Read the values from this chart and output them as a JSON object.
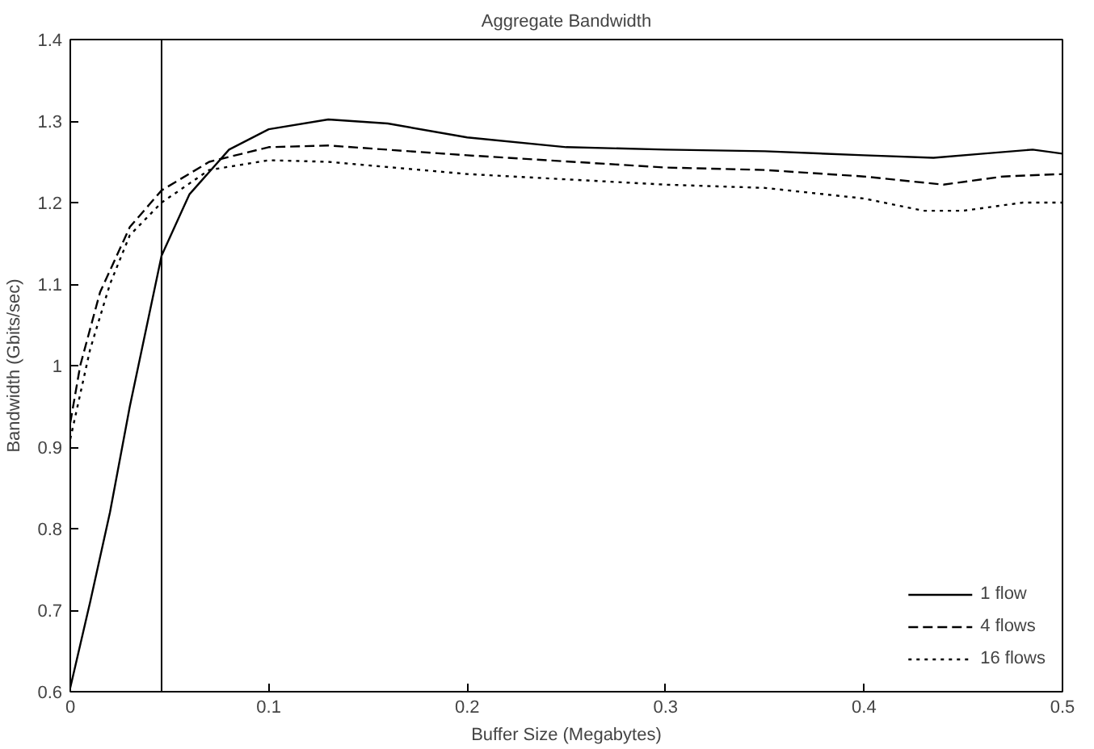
{
  "chart_data": {
    "type": "line",
    "title": "Aggregate Bandwidth",
    "xlabel": "Buffer Size (Megabytes)",
    "ylabel": "Bandwidth (Gbits/sec)",
    "xlim": [
      0,
      0.5
    ],
    "ylim": [
      0.6,
      1.4
    ],
    "xticks": [
      0,
      0.1,
      0.2,
      0.3,
      0.4,
      0.5
    ],
    "yticks": [
      0.6,
      0.7,
      0.8,
      0.9,
      1,
      1.1,
      1.2,
      1.3,
      1.4
    ],
    "grid": false,
    "legend": "bottom right",
    "ref_lines": [
      {
        "axis": "x",
        "value": 0.046,
        "color": "#000000"
      }
    ],
    "series": [
      {
        "name": "1 flow",
        "color": "#000000",
        "line_style": "solid",
        "x": [
          0,
          0.01,
          0.02,
          0.03,
          0.046,
          0.06,
          0.08,
          0.1,
          0.13,
          0.16,
          0.2,
          0.25,
          0.3,
          0.35,
          0.4,
          0.435,
          0.46,
          0.485,
          0.5
        ],
        "values": [
          0.605,
          0.71,
          0.82,
          0.95,
          1.135,
          1.21,
          1.265,
          1.29,
          1.302,
          1.297,
          1.28,
          1.268,
          1.265,
          1.263,
          1.258,
          1.255,
          1.26,
          1.265,
          1.26
        ]
      },
      {
        "name": "4 flows",
        "color": "#000000",
        "line_style": "dashed",
        "x": [
          0,
          0.005,
          0.015,
          0.03,
          0.046,
          0.07,
          0.1,
          0.13,
          0.2,
          0.3,
          0.35,
          0.4,
          0.44,
          0.47,
          0.5
        ],
        "values": [
          0.93,
          1.0,
          1.09,
          1.17,
          1.215,
          1.25,
          1.268,
          1.27,
          1.258,
          1.243,
          1.24,
          1.232,
          1.222,
          1.232,
          1.235
        ]
      },
      {
        "name": "16 flows",
        "color": "#000000",
        "line_style": "dotted",
        "x": [
          0,
          0.01,
          0.02,
          0.03,
          0.046,
          0.07,
          0.1,
          0.13,
          0.2,
          0.3,
          0.35,
          0.4,
          0.43,
          0.45,
          0.48,
          0.5
        ],
        "values": [
          0.91,
          1.02,
          1.1,
          1.16,
          1.2,
          1.24,
          1.252,
          1.25,
          1.235,
          1.222,
          1.218,
          1.205,
          1.19,
          1.19,
          1.2,
          1.2
        ]
      }
    ]
  }
}
